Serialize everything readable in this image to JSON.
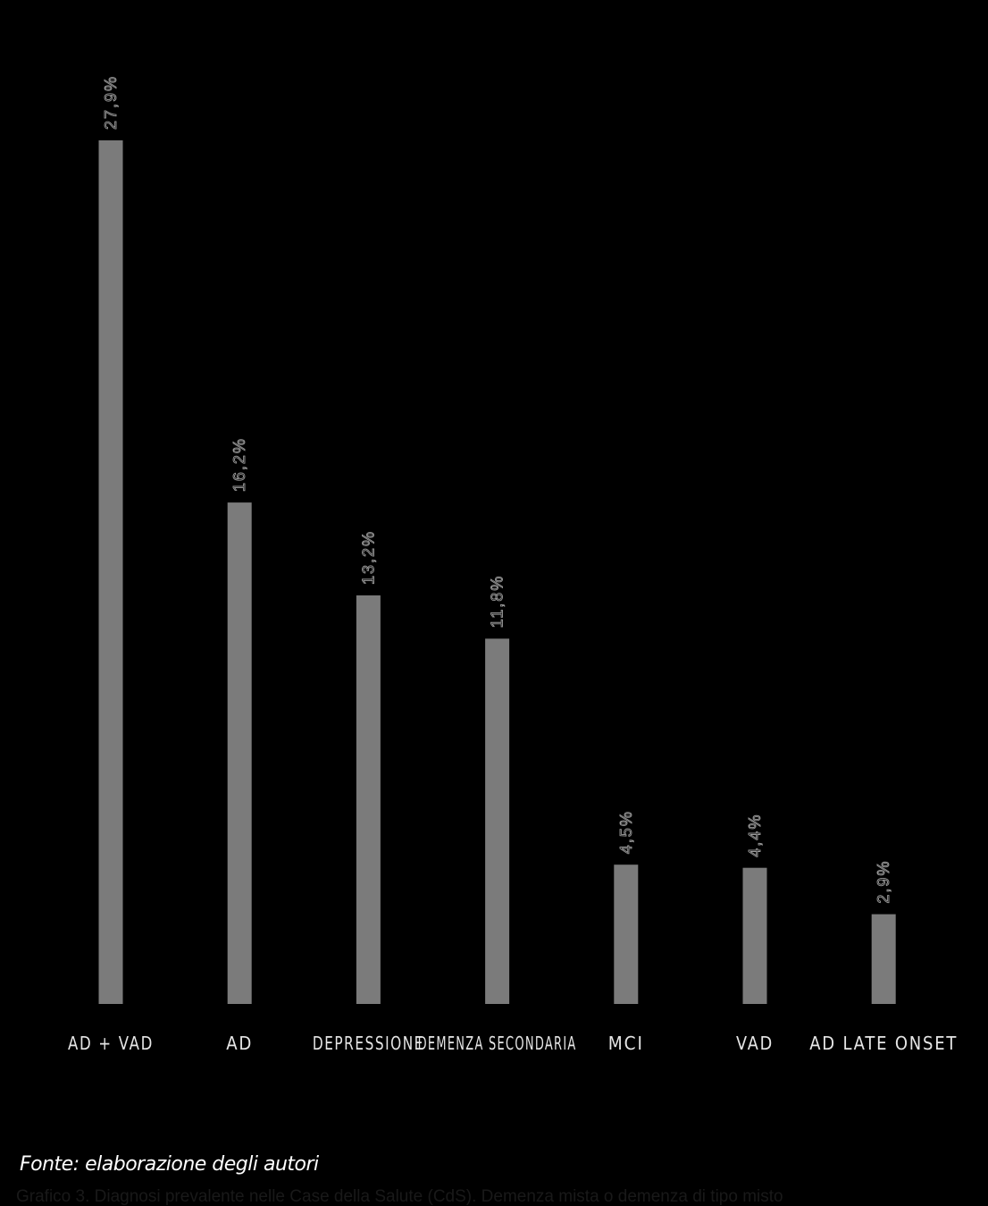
{
  "chart_data": {
    "type": "bar",
    "categories": [
      "AD + VAD",
      "AD",
      "DEPRESSIONE",
      "DEMENZA SECONDARIA",
      "MCI",
      "VAD",
      "AD LATE ONSET"
    ],
    "values": [
      27.9,
      16.2,
      13.2,
      11.8,
      4.5,
      4.4,
      2.9
    ],
    "value_labels": [
      "27,9%",
      "16,2%",
      "13,2%",
      "11,8%",
      "4,5%",
      "4,4%",
      "2,9%"
    ],
    "title": "",
    "xlabel": "",
    "ylabel": "",
    "ylim": [
      0,
      28
    ],
    "grid": false,
    "colors": {
      "background": "#000000",
      "bar": "#7b7b7b",
      "value_label": "#9a9a9a",
      "category_label": "#e6e6e6"
    }
  },
  "source_note": "Fonte: elaborazione degli autori",
  "caption": "Grafico 3. Diagnosi prevalente nelle Case della Salute (CdS). Demenza mista o demenza di tipo misto"
}
